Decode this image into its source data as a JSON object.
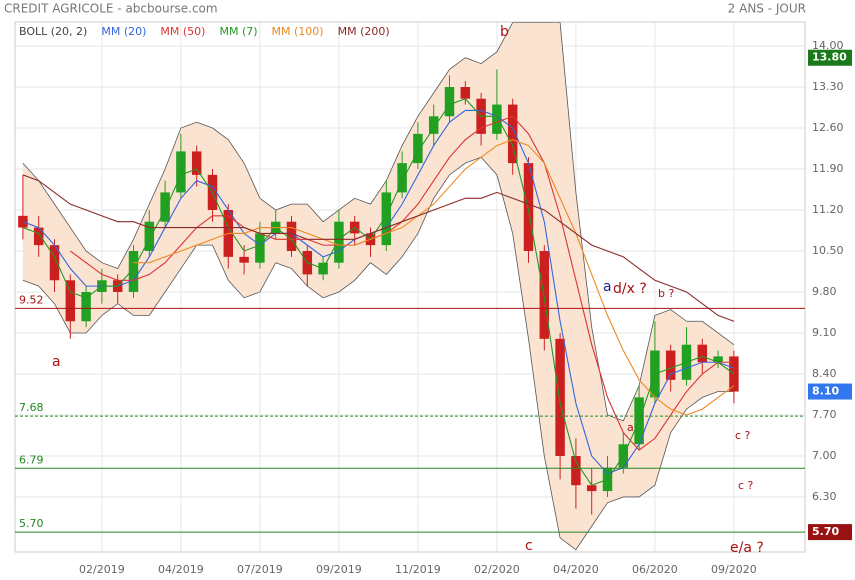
{
  "chart_data": {
    "type": "candlestick",
    "title": "CREDIT AGRICOLE - abcbourse.com",
    "subtitle": "2 ANS - JOUR",
    "categories": [
      null,
      null,
      null,
      null,
      null,
      "02/2019",
      null,
      null,
      null,
      null,
      "04/2019",
      null,
      null,
      null,
      null,
      "07/2019",
      null,
      null,
      null,
      null,
      "09/2019",
      null,
      null,
      null,
      null,
      "11/2019",
      null,
      null,
      null,
      null,
      "02/2020",
      null,
      null,
      null,
      null,
      "04/2020",
      null,
      null,
      null,
      null,
      "06/2020",
      null,
      null,
      null,
      null,
      "09/2020"
    ],
    "open": [
      11.1,
      10.9,
      10.6,
      10.0,
      9.3,
      9.8,
      10.0,
      9.8,
      10.5,
      11.0,
      11.5,
      12.2,
      11.8,
      11.2,
      10.4,
      10.3,
      10.8,
      11.0,
      10.5,
      10.1,
      10.3,
      11.0,
      10.8,
      10.6,
      11.5,
      12.0,
      12.5,
      12.8,
      13.3,
      13.1,
      12.5,
      13.0,
      12.0,
      10.5,
      9.0,
      7.0,
      6.5,
      6.4,
      6.8,
      7.2,
      8.0,
      8.8,
      8.3,
      8.9,
      8.6,
      8.7
    ],
    "high": [
      11.8,
      11.1,
      10.7,
      10.1,
      9.9,
      10.2,
      10.1,
      10.6,
      11.2,
      11.7,
      12.5,
      12.3,
      11.9,
      11.3,
      10.6,
      11.0,
      11.2,
      11.1,
      10.6,
      10.4,
      11.2,
      11.1,
      10.9,
      11.7,
      12.2,
      12.7,
      13.0,
      13.5,
      13.4,
      13.2,
      13.6,
      13.1,
      12.1,
      10.6,
      9.1,
      7.3,
      6.8,
      7.0,
      7.4,
      8.2,
      9.3,
      8.9,
      9.2,
      9.0,
      8.8,
      8.8
    ],
    "low": [
      10.7,
      10.4,
      9.8,
      9.0,
      9.2,
      9.6,
      9.6,
      9.7,
      10.4,
      10.9,
      11.4,
      11.6,
      11.0,
      10.2,
      10.1,
      10.2,
      10.7,
      10.4,
      9.9,
      10.0,
      10.2,
      10.6,
      10.4,
      10.5,
      11.4,
      11.9,
      12.3,
      12.7,
      13.0,
      12.3,
      12.4,
      11.8,
      10.3,
      8.8,
      6.6,
      6.1,
      6.0,
      6.3,
      6.7,
      7.1,
      7.9,
      8.1,
      8.2,
      8.4,
      8.5,
      7.9
    ],
    "close": [
      10.9,
      10.6,
      10.0,
      9.3,
      9.8,
      10.0,
      9.8,
      10.5,
      11.0,
      11.5,
      12.2,
      11.8,
      11.2,
      10.4,
      10.3,
      10.8,
      11.0,
      10.5,
      10.1,
      10.3,
      11.0,
      10.8,
      10.6,
      11.5,
      12.0,
      12.5,
      12.8,
      13.3,
      13.1,
      12.5,
      13.0,
      12.0,
      10.5,
      9.0,
      7.0,
      6.5,
      6.4,
      6.8,
      7.2,
      8.0,
      8.8,
      8.3,
      8.9,
      8.6,
      8.7,
      8.1
    ],
    "up_color": "#22a022",
    "down_color": "#cc2020",
    "bollinger": {
      "name": "BOLL (20, 2)",
      "color": "#555555",
      "fill": "#fbe3d2",
      "upper": [
        12.0,
        11.7,
        11.3,
        10.9,
        10.5,
        10.3,
        10.2,
        10.7,
        11.3,
        11.9,
        12.6,
        12.7,
        12.6,
        12.4,
        12.0,
        11.4,
        11.2,
        11.3,
        11.3,
        11.0,
        11.2,
        11.4,
        11.3,
        11.7,
        12.3,
        12.8,
        13.2,
        13.6,
        13.8,
        13.7,
        13.9,
        14.4,
        14.4,
        14.4,
        14.4,
        11.5,
        9.2,
        7.7,
        7.6,
        8.2,
        9.4,
        9.5,
        9.3,
        9.3,
        9.1,
        8.9
      ],
      "lower": [
        10.0,
        9.9,
        9.6,
        9.1,
        9.1,
        9.4,
        9.6,
        9.4,
        9.4,
        9.8,
        10.2,
        10.6,
        10.6,
        10.0,
        9.7,
        9.8,
        10.3,
        10.2,
        9.9,
        9.7,
        9.8,
        10.0,
        10.3,
        10.1,
        10.4,
        10.8,
        11.4,
        11.8,
        12.0,
        12.1,
        11.8,
        10.8,
        9.0,
        7.0,
        5.6,
        5.4,
        5.8,
        6.2,
        6.3,
        6.3,
        6.5,
        7.4,
        7.8,
        8.0,
        8.1,
        8.1
      ]
    },
    "series": [
      {
        "name": "MM (20)",
        "color": "#3366dd",
        "values": [
          11.0,
          10.9,
          10.6,
          10.2,
          9.9,
          9.9,
          9.9,
          10.0,
          10.4,
          10.9,
          11.4,
          11.7,
          11.6,
          11.2,
          10.8,
          10.6,
          10.8,
          10.8,
          10.6,
          10.4,
          10.5,
          10.7,
          10.8,
          10.9,
          11.3,
          11.8,
          12.3,
          12.7,
          12.9,
          12.9,
          12.8,
          12.6,
          12.0,
          11.0,
          9.3,
          7.9,
          7.0,
          6.7,
          6.8,
          7.2,
          7.9,
          8.4,
          8.5,
          8.6,
          8.6,
          8.5
        ]
      },
      {
        "name": "MM (50)",
        "color": "#dd3333",
        "values": [
          null,
          null,
          null,
          10.5,
          10.3,
          10.1,
          10.0,
          10.0,
          10.1,
          10.3,
          10.6,
          10.9,
          11.1,
          11.1,
          10.9,
          10.8,
          10.7,
          10.7,
          10.7,
          10.6,
          10.6,
          10.6,
          10.7,
          10.8,
          11.0,
          11.3,
          11.7,
          12.1,
          12.4,
          12.6,
          12.7,
          12.8,
          12.5,
          12.0,
          11.1,
          10.0,
          8.9,
          8.0,
          7.4,
          7.1,
          7.3,
          7.7,
          8.1,
          8.4,
          8.6,
          8.6
        ]
      },
      {
        "name": "MM (7)",
        "color": "#229922",
        "values": [
          10.9,
          10.8,
          10.4,
          9.8,
          9.7,
          9.9,
          9.9,
          10.2,
          10.7,
          11.2,
          11.8,
          11.9,
          11.5,
          10.9,
          10.5,
          10.6,
          10.9,
          10.7,
          10.3,
          10.2,
          10.7,
          10.9,
          10.7,
          11.1,
          11.7,
          12.2,
          12.6,
          13.0,
          13.1,
          12.8,
          12.8,
          12.3,
          11.2,
          9.7,
          7.9,
          6.9,
          6.5,
          6.6,
          7.0,
          7.6,
          8.4,
          8.5,
          8.6,
          8.7,
          8.6,
          8.4
        ]
      },
      {
        "name": "MM (100)",
        "color": "#ee8822",
        "values": [
          null,
          null,
          null,
          null,
          null,
          null,
          null,
          10.3,
          10.3,
          10.4,
          10.5,
          10.6,
          10.7,
          10.8,
          10.8,
          10.9,
          10.9,
          10.9,
          10.8,
          10.7,
          10.6,
          10.6,
          10.7,
          10.8,
          10.9,
          11.1,
          11.3,
          11.6,
          11.9,
          12.1,
          12.3,
          12.4,
          12.3,
          12.0,
          11.4,
          10.8,
          10.1,
          9.4,
          8.8,
          8.3,
          8.0,
          7.8,
          7.7,
          7.8,
          8.0,
          8.2
        ]
      },
      {
        "name": "MM (200)",
        "color": "#8b2a2a",
        "values": [
          11.8,
          11.7,
          11.5,
          11.3,
          11.2,
          11.1,
          11.0,
          11.0,
          10.9,
          10.9,
          10.9,
          10.9,
          10.9,
          10.9,
          10.9,
          10.8,
          10.8,
          10.8,
          10.7,
          10.7,
          10.7,
          10.7,
          10.8,
          10.9,
          11.0,
          11.1,
          11.2,
          11.3,
          11.4,
          11.4,
          11.5,
          11.4,
          11.3,
          11.2,
          11.0,
          10.8,
          10.6,
          10.5,
          10.4,
          10.2,
          10.0,
          9.9,
          9.8,
          9.6,
          9.4,
          9.3
        ]
      }
    ],
    "ylim": [
      5.36,
      14.41
    ],
    "yticks": [
      {
        "value": 6.3,
        "label": "6.30"
      },
      {
        "value": 7.0,
        "label": "7.00"
      },
      {
        "value": 7.7,
        "label": "7.70"
      },
      {
        "value": 8.4,
        "label": "8.40"
      },
      {
        "value": 9.1,
        "label": "9.10"
      },
      {
        "value": 9.8,
        "label": "9.80"
      },
      {
        "value": 10.5,
        "label": "10.50"
      },
      {
        "value": 11.2,
        "label": "11.20"
      },
      {
        "value": 11.9,
        "label": "11.90"
      },
      {
        "value": 12.6,
        "label": "12.60"
      },
      {
        "value": 13.3,
        "label": "13.30"
      },
      {
        "value": 14.0,
        "label": "14.00"
      }
    ],
    "grid": true,
    "levels": [
      {
        "value": 9.52,
        "label": "9.52",
        "color": "#aa1111",
        "dashed": false
      },
      {
        "value": 7.68,
        "label": "7.68",
        "color": "#228822",
        "dashed": true
      },
      {
        "value": 6.79,
        "label": "6.79",
        "color": "#228822",
        "dashed": false
      },
      {
        "value": 5.7,
        "label": "5.70",
        "color": "#228822",
        "dashed": false
      }
    ],
    "price_tags": [
      {
        "value": 13.8,
        "label": "13.80",
        "color": "#1a7a1a"
      },
      {
        "value": 8.1,
        "label": "8.10",
        "color": "#3377ee"
      },
      {
        "value": 5.7,
        "label": "5.70",
        "color": "#991111"
      }
    ],
    "annotations": [
      {
        "text": "a",
        "color": "#aa1111"
      },
      {
        "text": "b",
        "color": "#aa1111"
      },
      {
        "text": "c",
        "color": "#aa1111"
      },
      {
        "text": "a",
        "color": "#222288"
      },
      {
        "text": "d/x ?",
        "color": "#aa1111"
      },
      {
        "text": "b ?",
        "color": "#aa1111"
      },
      {
        "text": "a",
        "color": "#aa1111"
      },
      {
        "text": "c ?",
        "color": "#aa1111"
      },
      {
        "text": "c ?",
        "color": "#aa1111"
      },
      {
        "text": "e/a ?",
        "color": "#aa1111"
      }
    ]
  }
}
